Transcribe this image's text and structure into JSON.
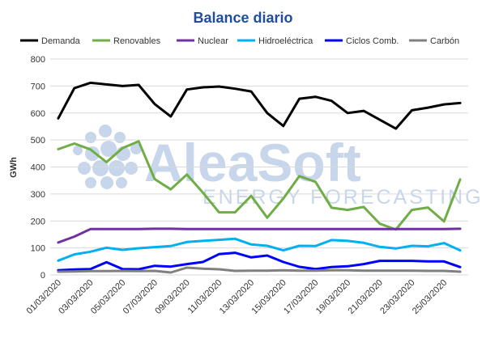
{
  "chart_data": {
    "type": "line",
    "title": "Balance diario",
    "ylabel": "GWh",
    "xlabel": "",
    "ylim": [
      0,
      800
    ],
    "yticks": [
      0,
      100,
      200,
      300,
      400,
      500,
      600,
      700,
      800
    ],
    "grid": true,
    "legend_position": "top",
    "x": [
      "01/03/2020",
      "02/03/2020",
      "03/03/2020",
      "04/03/2020",
      "05/03/2020",
      "06/03/2020",
      "07/03/2020",
      "08/03/2020",
      "09/03/2020",
      "10/03/2020",
      "11/03/2020",
      "12/03/2020",
      "13/03/2020",
      "14/03/2020",
      "15/03/2020",
      "16/03/2020",
      "17/03/2020",
      "18/03/2020",
      "19/03/2020",
      "20/03/2020",
      "21/03/2020",
      "22/03/2020",
      "23/03/2020",
      "24/03/2020",
      "25/03/2020",
      "26/03/2020"
    ],
    "x_tick_labels": [
      "01/03/2020",
      "03/03/2020",
      "05/03/2020",
      "07/03/2020",
      "09/03/2020",
      "11/03/2020",
      "13/03/2020",
      "15/03/2020",
      "17/03/2020",
      "19/03/2020",
      "21/03/2020",
      "23/03/2020",
      "25/03/2020"
    ],
    "series": [
      {
        "name": "Demanda",
        "color": "#000000",
        "values": [
          580,
          692,
          712,
          706,
          700,
          704,
          633,
          587,
          687,
          695,
          698,
          690,
          680,
          600,
          552,
          653,
          660,
          645,
          600,
          608,
          575,
          542,
          610,
          620,
          632,
          637
        ]
      },
      {
        "name": "Renovables",
        "color": "#70ad47",
        "values": [
          466,
          487,
          465,
          418,
          470,
          495,
          355,
          317,
          372,
          305,
          232,
          232,
          293,
          212,
          283,
          366,
          345,
          249,
          241,
          252,
          190,
          168,
          241,
          250,
          198,
          354
        ]
      },
      {
        "name": "Nuclear",
        "color": "#7030a0",
        "values": [
          120,
          142,
          170,
          170,
          170,
          170,
          171,
          171,
          170,
          170,
          170,
          170,
          170,
          170,
          170,
          170,
          170,
          170,
          170,
          170,
          170,
          170,
          170,
          170,
          170,
          171
        ]
      },
      {
        "name": "Hidroeléctrica",
        "color": "#00b0f0",
        "values": [
          53,
          76,
          86,
          101,
          93,
          99,
          103,
          107,
          122,
          126,
          130,
          134,
          113,
          108,
          91,
          108,
          107,
          129,
          126,
          119,
          104,
          98,
          108,
          106,
          118,
          91
        ]
      },
      {
        "name": "Ciclos Comb.",
        "color": "#0000ff",
        "values": [
          17,
          20,
          22,
          47,
          22,
          21,
          34,
          31,
          40,
          48,
          77,
          82,
          65,
          72,
          48,
          30,
          22,
          29,
          32,
          40,
          52,
          52,
          52,
          50,
          50,
          29
        ]
      },
      {
        "name": "Carbón",
        "color": "#808080",
        "values": [
          12,
          13,
          14,
          14,
          15,
          14,
          15,
          9,
          27,
          23,
          21,
          15,
          16,
          16,
          17,
          16,
          16,
          17,
          17,
          16,
          16,
          16,
          16,
          15,
          15,
          12
        ]
      }
    ]
  },
  "watermark": {
    "brand": "AleaSoft",
    "tagline": "ENERGY FORECASTING",
    "color": "#c7d6ea"
  }
}
